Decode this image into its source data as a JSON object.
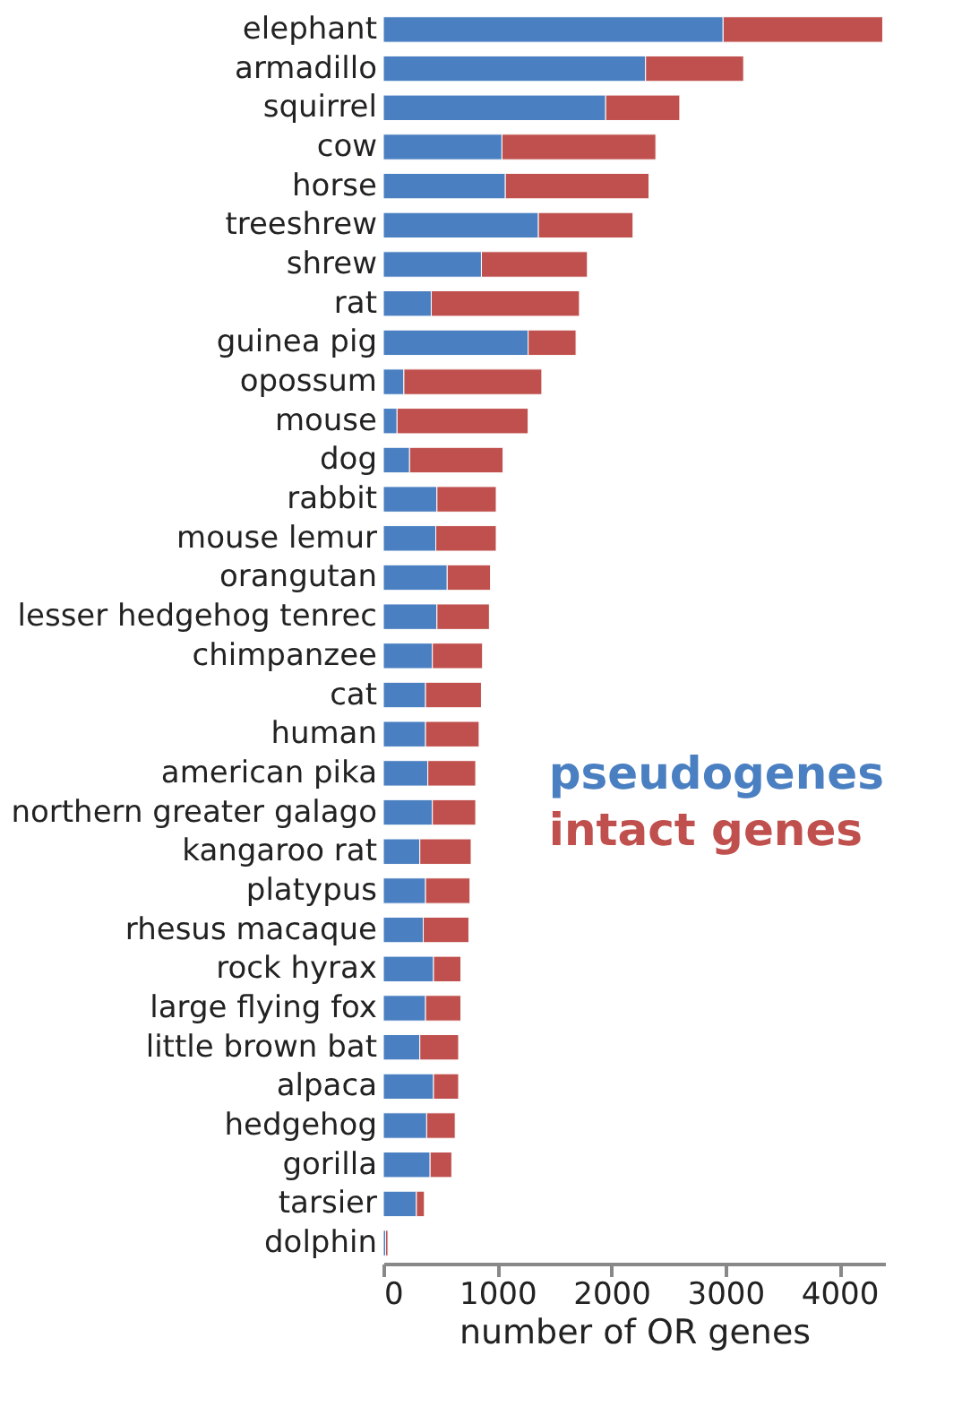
{
  "chart_data": {
    "type": "bar",
    "orientation": "horizontal",
    "stacked": true,
    "xlabel": "number of OR genes",
    "categories": [
      "elephant",
      "armadillo",
      "squirrel",
      "cow",
      "horse",
      "treeshrew",
      "shrew",
      "rat",
      "guinea pig",
      "opossum",
      "mouse",
      "dog",
      "rabbit",
      "mouse lemur",
      "orangutan",
      "lesser hedgehog tenrec",
      "chimpanzee",
      "cat",
      "human",
      "american pika",
      "northern greater galago",
      "kangaroo rat",
      "platypus",
      "rhesus macaque",
      "rock hyrax",
      "large flying fox",
      "little brown bat",
      "alpaca",
      "hedgehog",
      "gorilla",
      "tarsier",
      "dolphin"
    ],
    "series": [
      {
        "name": "pseudogenes",
        "color": "#4a7fc1",
        "values": [
          2980,
          2300,
          1950,
          1040,
          1070,
          1360,
          860,
          420,
          1270,
          180,
          120,
          230,
          470,
          460,
          560,
          470,
          430,
          370,
          370,
          390,
          430,
          320,
          370,
          350,
          440,
          370,
          320,
          440,
          380,
          410,
          290,
          20
        ]
      },
      {
        "name": "intact genes",
        "color": "#c0504d",
        "values": [
          1400,
          860,
          650,
          1350,
          1260,
          830,
          930,
          1300,
          420,
          1210,
          1150,
          820,
          520,
          530,
          380,
          460,
          440,
          490,
          470,
          420,
          380,
          450,
          390,
          400,
          240,
          310,
          340,
          220,
          250,
          190,
          70,
          20
        ]
      }
    ],
    "xlim": [
      0,
      4400
    ],
    "xticks": [
      0,
      1000,
      2000,
      3000,
      4000
    ],
    "grid": false,
    "legend": "right"
  }
}
